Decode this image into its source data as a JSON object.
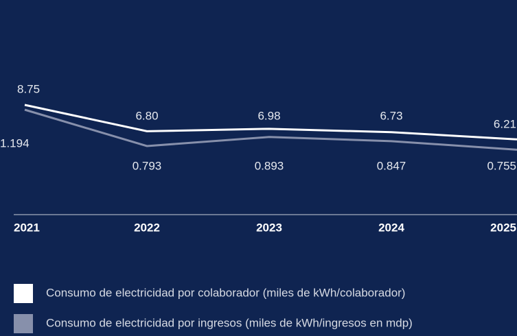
{
  "chart_data": {
    "type": "line",
    "categories": [
      "2021",
      "2022",
      "2023",
      "2024",
      "2025"
    ],
    "series": [
      {
        "name": "Consumo de electricidad por colaborador (miles de kWh/colaborador)",
        "color": "#ffffff",
        "values": [
          8.75,
          6.8,
          6.98,
          6.73,
          6.21
        ],
        "value_labels": [
          "8.75",
          "6.80",
          "6.98",
          "6.73",
          "6.21"
        ]
      },
      {
        "name": "Consumo de electricidad por ingresos (miles de kWh/ingresos en mdp)",
        "color": "#8790ab",
        "values": [
          1.194,
          0.793,
          0.893,
          0.847,
          0.755
        ]
      }
    ]
  }
}
